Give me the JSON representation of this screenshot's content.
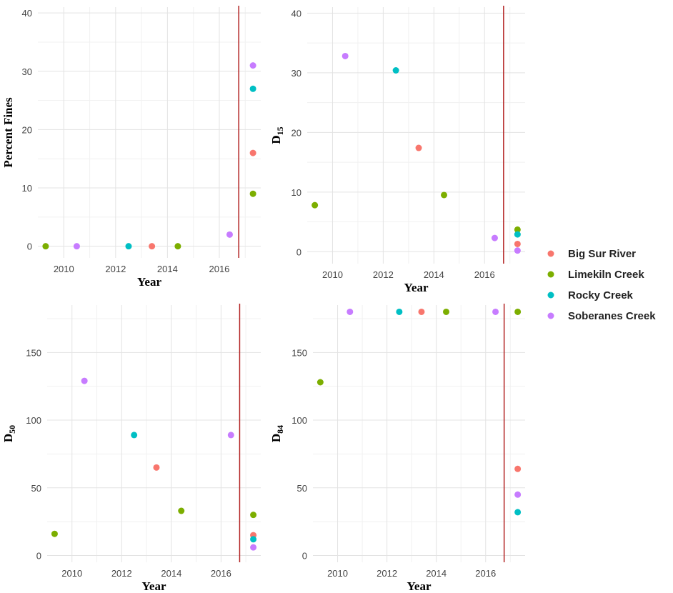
{
  "chart_data": [
    {
      "type": "scatter",
      "xlabel": "Year",
      "ylabel": "Percent Fines",
      "xlim": [
        2009,
        2017.6
      ],
      "ylim": [
        -2,
        41
      ],
      "xticks": [
        2010,
        2012,
        2014,
        2016
      ],
      "yticks": [
        0,
        10,
        20,
        30,
        40
      ],
      "vline": 2016.75,
      "grid": true,
      "points": [
        {
          "x": 2009.3,
          "y": 0,
          "series": "Limekiln Creek"
        },
        {
          "x": 2010.5,
          "y": 0,
          "series": "Soberanes Creek"
        },
        {
          "x": 2012.5,
          "y": 0,
          "series": "Rocky Creek"
        },
        {
          "x": 2013.4,
          "y": 0,
          "series": "Big Sur River"
        },
        {
          "x": 2014.4,
          "y": 0,
          "series": "Limekiln Creek"
        },
        {
          "x": 2016.4,
          "y": 2,
          "series": "Soberanes Creek"
        },
        {
          "x": 2017.3,
          "y": 31,
          "series": "Soberanes Creek"
        },
        {
          "x": 2017.3,
          "y": 27,
          "series": "Rocky Creek"
        },
        {
          "x": 2017.3,
          "y": 16,
          "series": "Big Sur River"
        },
        {
          "x": 2017.3,
          "y": 9,
          "series": "Limekiln Creek"
        }
      ]
    },
    {
      "type": "scatter",
      "xlabel": "Year",
      "ylabel": "D15",
      "xlim": [
        2009,
        2017.6
      ],
      "ylim": [
        -2,
        41
      ],
      "xticks": [
        2010,
        2012,
        2014,
        2016
      ],
      "yticks": [
        0,
        10,
        20,
        30,
        40
      ],
      "vline": 2016.75,
      "grid": true,
      "points": [
        {
          "x": 2009.3,
          "y": 7.8,
          "series": "Limekiln Creek"
        },
        {
          "x": 2010.5,
          "y": 32.8,
          "series": "Soberanes Creek"
        },
        {
          "x": 2012.5,
          "y": 30.4,
          "series": "Rocky Creek"
        },
        {
          "x": 2013.4,
          "y": 17.4,
          "series": "Big Sur River"
        },
        {
          "x": 2014.4,
          "y": 9.5,
          "series": "Limekiln Creek"
        },
        {
          "x": 2016.4,
          "y": 2.3,
          "series": "Soberanes Creek"
        },
        {
          "x": 2017.3,
          "y": 3.7,
          "series": "Limekiln Creek"
        },
        {
          "x": 2017.3,
          "y": 2.9,
          "series": "Rocky Creek"
        },
        {
          "x": 2017.3,
          "y": 1.3,
          "series": "Big Sur River"
        },
        {
          "x": 2017.3,
          "y": 0.2,
          "series": "Soberanes Creek"
        }
      ]
    },
    {
      "type": "scatter",
      "xlabel": "Year",
      "ylabel": "D50",
      "xlim": [
        2009,
        2017.6
      ],
      "ylim": [
        -5,
        185
      ],
      "xticks": [
        2010,
        2012,
        2014,
        2016
      ],
      "yticks": [
        0,
        50,
        100,
        150
      ],
      "vline": 2016.75,
      "grid": true,
      "points": [
        {
          "x": 2009.3,
          "y": 16,
          "series": "Limekiln Creek"
        },
        {
          "x": 2010.5,
          "y": 129,
          "series": "Soberanes Creek"
        },
        {
          "x": 2012.5,
          "y": 89,
          "series": "Rocky Creek"
        },
        {
          "x": 2013.4,
          "y": 65,
          "series": "Big Sur River"
        },
        {
          "x": 2014.4,
          "y": 33,
          "series": "Limekiln Creek"
        },
        {
          "x": 2016.4,
          "y": 89,
          "series": "Soberanes Creek"
        },
        {
          "x": 2017.3,
          "y": 30,
          "series": "Limekiln Creek"
        },
        {
          "x": 2017.3,
          "y": 15,
          "series": "Big Sur River"
        },
        {
          "x": 2017.3,
          "y": 12,
          "series": "Rocky Creek"
        },
        {
          "x": 2017.3,
          "y": 6,
          "series": "Soberanes Creek"
        }
      ]
    },
    {
      "type": "scatter",
      "xlabel": "Year",
      "ylabel": "D84",
      "xlim": [
        2009,
        2017.6
      ],
      "ylim": [
        -5,
        185
      ],
      "xticks": [
        2010,
        2012,
        2014,
        2016
      ],
      "yticks": [
        0,
        50,
        100,
        150
      ],
      "vline": 2016.75,
      "grid": true,
      "points": [
        {
          "x": 2009.3,
          "y": 128,
          "series": "Limekiln Creek"
        },
        {
          "x": 2010.5,
          "y": 180,
          "series": "Soberanes Creek"
        },
        {
          "x": 2012.5,
          "y": 180,
          "series": "Rocky Creek"
        },
        {
          "x": 2013.4,
          "y": 180,
          "series": "Big Sur River"
        },
        {
          "x": 2014.4,
          "y": 180,
          "series": "Limekiln Creek"
        },
        {
          "x": 2016.4,
          "y": 180,
          "series": "Soberanes Creek"
        },
        {
          "x": 2017.3,
          "y": 180,
          "series": "Limekiln Creek"
        },
        {
          "x": 2017.3,
          "y": 64,
          "series": "Big Sur River"
        },
        {
          "x": 2017.3,
          "y": 45,
          "series": "Soberanes Creek"
        },
        {
          "x": 2017.3,
          "y": 32,
          "series": "Rocky Creek"
        }
      ]
    }
  ],
  "legend": {
    "placement": "right",
    "items": [
      {
        "label": "Big Sur River",
        "color": "#F8766D"
      },
      {
        "label": "Limekiln Creek",
        "color": "#7CAE00"
      },
      {
        "label": "Rocky Creek",
        "color": "#00BFC4"
      },
      {
        "label": "Soberanes Creek",
        "color": "#C77CFF"
      }
    ]
  },
  "colors": {
    "vline": "#B22222"
  }
}
